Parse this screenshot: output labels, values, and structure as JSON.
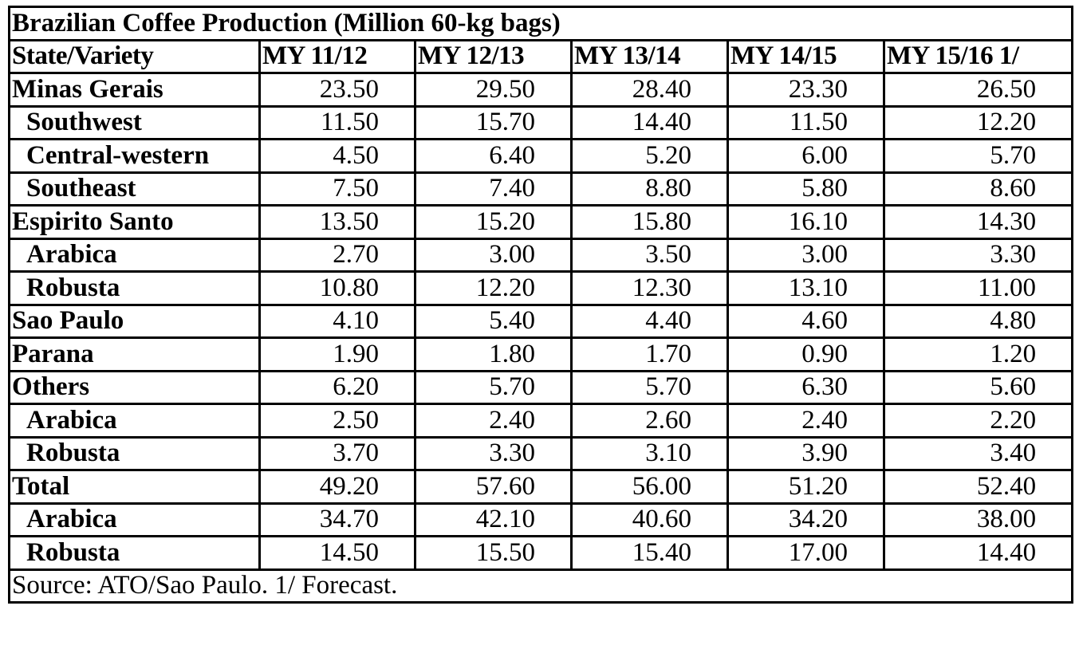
{
  "chart_data": {
    "type": "table",
    "title": "Brazilian Coffee Production (Million 60-kg bags)",
    "columns": [
      "State/Variety",
      "MY 11/12",
      "MY 12/13",
      "MY 13/14",
      "MY 14/15",
      "MY 15/16 1/"
    ],
    "rows": [
      {
        "label": "Minas Gerais",
        "indent": false,
        "values": [
          "23.50",
          "29.50",
          "28.40",
          "23.30",
          "26.50"
        ]
      },
      {
        "label": "Southwest",
        "indent": true,
        "values": [
          "11.50",
          "15.70",
          "14.40",
          "11.50",
          "12.20"
        ]
      },
      {
        "label": "Central-western",
        "indent": true,
        "values": [
          "4.50",
          "6.40",
          "5.20",
          "6.00",
          "5.70"
        ]
      },
      {
        "label": "Southeast",
        "indent": true,
        "values": [
          "7.50",
          "7.40",
          "8.80",
          "5.80",
          "8.60"
        ]
      },
      {
        "label": "Espirito Santo",
        "indent": false,
        "values": [
          "13.50",
          "15.20",
          "15.80",
          "16.10",
          "14.30"
        ]
      },
      {
        "label": "Arabica",
        "indent": true,
        "values": [
          "2.70",
          "3.00",
          "3.50",
          "3.00",
          "3.30"
        ]
      },
      {
        "label": "Robusta",
        "indent": true,
        "values": [
          "10.80",
          "12.20",
          "12.30",
          "13.10",
          "11.00"
        ]
      },
      {
        "label": "Sao Paulo",
        "indent": false,
        "values": [
          "4.10",
          "5.40",
          "4.40",
          "4.60",
          "4.80"
        ]
      },
      {
        "label": "Parana",
        "indent": false,
        "values": [
          "1.90",
          "1.80",
          "1.70",
          "0.90",
          "1.20"
        ]
      },
      {
        "label": "Others",
        "indent": false,
        "values": [
          "6.20",
          "5.70",
          "5.70",
          "6.30",
          "5.60"
        ]
      },
      {
        "label": "Arabica",
        "indent": true,
        "values": [
          "2.50",
          "2.40",
          "2.60",
          "2.40",
          "2.20"
        ]
      },
      {
        "label": "Robusta",
        "indent": true,
        "values": [
          "3.70",
          "3.30",
          "3.10",
          "3.90",
          "3.40"
        ]
      },
      {
        "label": "Total",
        "indent": false,
        "values": [
          "49.20",
          "57.60",
          "56.00",
          "51.20",
          "52.40"
        ]
      },
      {
        "label": "Arabica",
        "indent": true,
        "values": [
          "34.70",
          "42.10",
          "40.60",
          "34.20",
          "38.00"
        ]
      },
      {
        "label": "Robusta",
        "indent": true,
        "values": [
          "14.50",
          "15.50",
          "15.40",
          "17.00",
          "14.40"
        ]
      }
    ],
    "footnote": "Source: ATO/Sao Paulo. 1/ Forecast."
  },
  "colors": {
    "text": "#000000",
    "border": "#000000",
    "background": "#ffffff"
  }
}
